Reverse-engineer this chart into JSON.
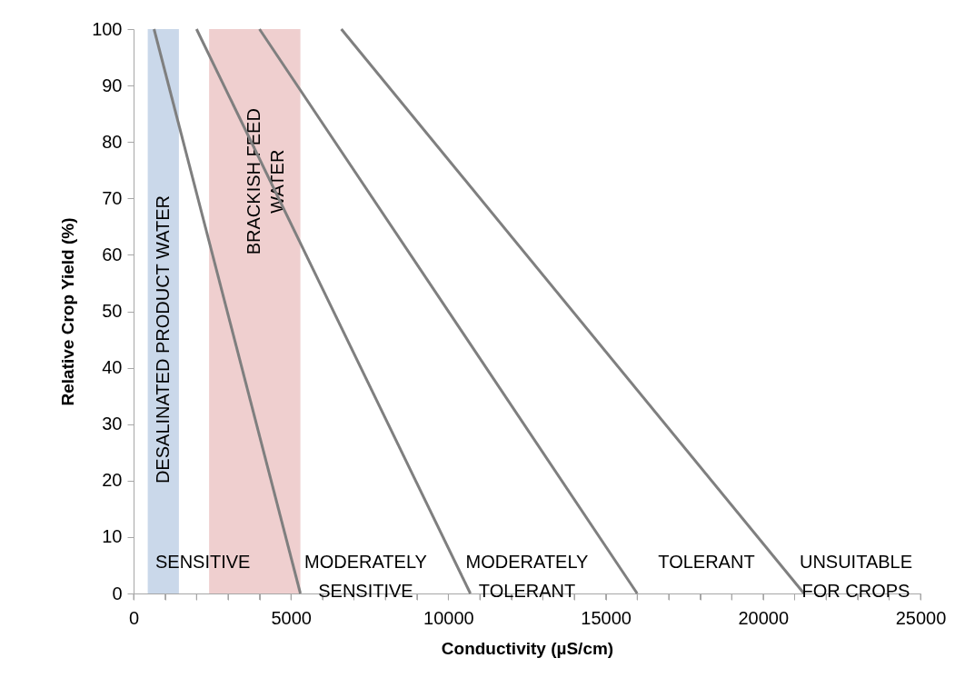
{
  "chart_data": {
    "type": "line",
    "xlabel": "Conductivity (µS/cm)",
    "ylabel": "Relative Crop Yield (%)",
    "series": [
      {
        "color": "#7f7f7f",
        "x": [
          650,
          5300
        ],
        "values": [
          100,
          0
        ]
      },
      {
        "color": "#7f7f7f",
        "x": [
          2000,
          10700
        ],
        "values": [
          100,
          0
        ]
      },
      {
        "color": "#7f7f7f",
        "x": [
          4000,
          16000
        ],
        "values": [
          100,
          0
        ]
      },
      {
        "color": "#7f7f7f",
        "x": [
          6600,
          21300
        ],
        "values": [
          100,
          0
        ]
      }
    ],
    "bands": [
      {
        "axis": "x",
        "from": 450,
        "to": 1440,
        "label": "DESALINATED PRODUCT WATER",
        "color": "#cad8ea"
      },
      {
        "axis": "x",
        "from": 2400,
        "to": 5300,
        "label": "BRACKISH FEED\nWATER",
        "color": "#efcfcf"
      }
    ],
    "annotations": [
      "SENSITIVE",
      "MODERATELY\nSENSITIVE",
      "MODERATELY\nTOLERANT",
      "TOLERANT",
      "UNSUITABLE\nFOR CROPS"
    ],
    "xlim": [
      0,
      25000
    ],
    "xticks": [
      0,
      {
        "value": 1000,
        "label": null
      },
      {
        "value": 2000,
        "label": null
      },
      {
        "value": 3000,
        "label": null
      },
      {
        "value": 4000,
        "label": null
      },
      5000,
      {
        "value": 6000,
        "label": null
      },
      {
        "value": 7000,
        "label": null
      },
      {
        "value": 8000,
        "label": null
      },
      {
        "value": 9000,
        "label": null
      },
      10000,
      {
        "value": 11000,
        "label": null
      },
      {
        "value": 12000,
        "label": null
      },
      {
        "value": 13000,
        "label": null
      },
      {
        "value": 14000,
        "label": null
      },
      15000,
      {
        "value": 16000,
        "label": null
      },
      {
        "value": 17000,
        "label": null
      },
      {
        "value": 18000,
        "label": null
      },
      {
        "value": 19000,
        "label": null
      },
      20000,
      {
        "value": 21000,
        "label": null
      },
      {
        "value": 22000,
        "label": null
      },
      {
        "value": 23000,
        "label": null
      },
      {
        "value": 24000,
        "label": null
      },
      25000
    ],
    "ylim": [
      0,
      100
    ],
    "yticks": [
      0,
      10,
      20,
      30,
      40,
      50,
      60,
      70,
      80,
      90,
      100
    ],
    "grid": false,
    "marker": "none",
    "line_style": "solid"
  }
}
